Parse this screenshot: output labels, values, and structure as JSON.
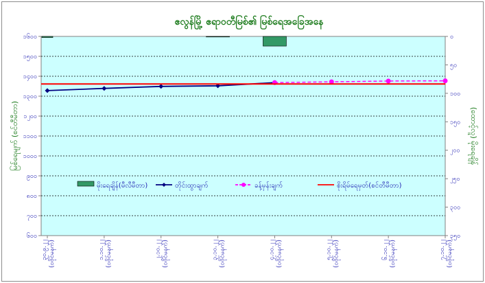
{
  "chart_data": {
    "type": "bar",
    "title": "ဧလွန်မြို့ ဧရာဝတီမြစ်၏ မြစ်ရေအခြေအနေ",
    "ylabel": "မြစ်ရေမျက် (စင်တီမီတာ)",
    "y2label": "(ထောင့်လူ) မိုးရေချိန်",
    "ylim": [
      600,
      1600
    ],
    "y2lim": [
      350,
      0
    ],
    "yticks": [
      "၁၆၀၀",
      "၁၅၀၀",
      "၁၄၀၀",
      "၁၃၀၀",
      "၁၂၀၀",
      "၁၁၀၀",
      "၁၀၀၀",
      "၉၀၀",
      "၈၀၀",
      "၇၀၀",
      "၆၀၀"
    ],
    "yticks_values": [
      1600,
      1500,
      1400,
      1300,
      1200,
      1100,
      1000,
      900,
      800,
      700,
      600
    ],
    "y2ticks": [
      "၀",
      "၅၀",
      "၁၀၀",
      "၁၅၀",
      "၂၀၀",
      "၂၅၀",
      "၃၀၀",
      "၃၅၀"
    ],
    "y2ticks_values": [
      0,
      50,
      100,
      150,
      200,
      250,
      300,
      350
    ],
    "categories": [
      {
        "date": "၃၀.၉.၂၂",
        "time": "(ဝဗိုင်မနက်)"
      },
      {
        "date": "၁.၁၀.၂၂",
        "time": "(ဝဗိုင်မနက်)"
      },
      {
        "date": "၂.၁၀.၂၂",
        "time": "(ဝဗိုင်မနက်)"
      },
      {
        "date": "၃.၁၀.၂၂",
        "time": "(ဝဗိုင်မနက်)"
      },
      {
        "date": "၄.၁၀.၂၂",
        "time": "(ဝဗိုင်မနက်)"
      },
      {
        "date": "၅.၁၀.၂၂",
        "time": "(ဝဗိုင်မနက်)"
      },
      {
        "date": "၆.၁၀.၂၂",
        "time": "(ဝဗိုင်မနက်)"
      },
      {
        "date": "၇.၁၀.၂၂",
        "time": "(ဝဗိုင်မနက်)"
      }
    ],
    "series": [
      {
        "name": "မိုးရေချိန်(မီလီမီတာ)",
        "kind": "bar",
        "axis": "right",
        "color": "#339966",
        "values": [
          2,
          0,
          0,
          1,
          17,
          0,
          0,
          0
        ]
      },
      {
        "name": "တိုင်းထွာချက်",
        "kind": "line",
        "axis": "left",
        "color": "#000080",
        "values": [
          1328,
          1339,
          1349,
          1352,
          1368,
          null,
          null,
          null
        ]
      },
      {
        "name": "ခန့်မှန်းချက်",
        "kind": "dashed-line",
        "axis": "left",
        "color": "#ff00ff",
        "values": [
          null,
          null,
          null,
          null,
          1368,
          1372,
          1376,
          1377
        ]
      },
      {
        "name": "စိုးရိမ်ရေမှတ်(စင်တီမီတာ)",
        "kind": "hline",
        "axis": "left",
        "color": "#ff0000",
        "value": 1361
      }
    ],
    "grid": true,
    "legend": "center"
  }
}
